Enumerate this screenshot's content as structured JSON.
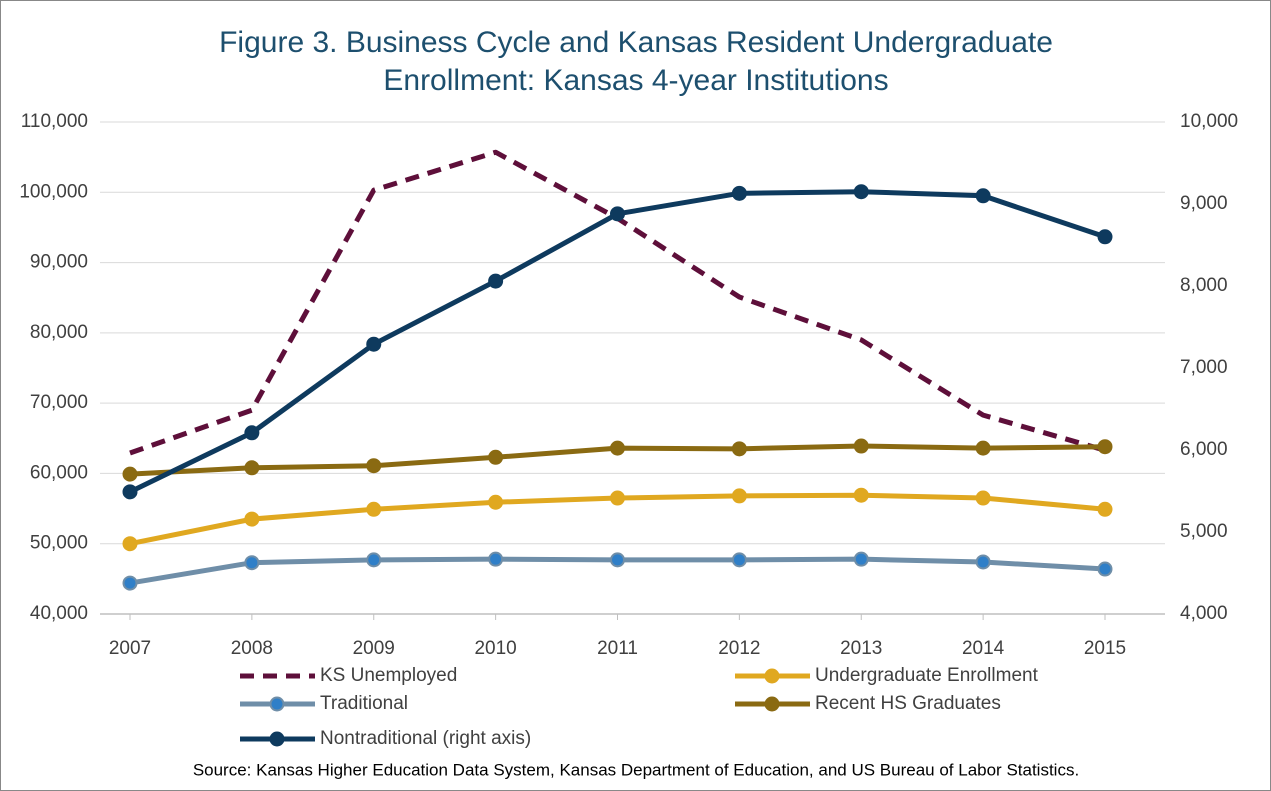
{
  "chart_data": {
    "type": "line",
    "title": [
      "Figure 3.  Business Cycle and Kansas Resident Undergraduate",
      "Enrollment: Kansas 4-year Institutions"
    ],
    "source": "Source: Kansas Higher Education Data System, Kansas Department of Education, and US Bureau of Labor Statistics.",
    "categories": [
      "2007",
      "2008",
      "2009",
      "2010",
      "2011",
      "2012",
      "2013",
      "2014",
      "2015"
    ],
    "series": [
      {
        "name": "KS Unemployed",
        "color": "#5e0f3a",
        "dashed": true,
        "markers": false,
        "values": [
          62900,
          69000,
          100300,
          105700,
          96300,
          85100,
          79000,
          68300,
          63300
        ]
      },
      {
        "name": "Undergraduate Enrollment",
        "color": "#e0a820",
        "markers": true,
        "values": [
          50000,
          53500,
          54900,
          55900,
          56500,
          56800,
          56900,
          56500,
          54900
        ]
      },
      {
        "name": "Traditional",
        "color": "#6f8ea8",
        "marker_color": "#2f7fc8",
        "markers": true,
        "values": [
          44400,
          47300,
          47700,
          47800,
          47700,
          47700,
          47800,
          47400,
          46400
        ]
      },
      {
        "name": "Recent HS Graduates",
        "color": "#8a6a12",
        "markers": true,
        "values": [
          59900,
          60800,
          61100,
          62300,
          63600,
          63500,
          63900,
          63600,
          63800
        ]
      },
      {
        "name": "Nontraditional (right axis)",
        "color": "#0e3a5e",
        "markers": true,
        "axis": "y2",
        "values": [
          5490,
          6210,
          7290,
          8060,
          8880,
          9130,
          9150,
          9100,
          8600
        ]
      }
    ],
    "ylim": [
      40000,
      110000
    ],
    "yticks": [
      {
        "value": 40000,
        "label": "40,000"
      },
      {
        "value": 50000,
        "label": "50,000"
      },
      {
        "value": 60000,
        "label": "60,000"
      },
      {
        "value": 70000,
        "label": "70,000"
      },
      {
        "value": 80000,
        "label": "80,000"
      },
      {
        "value": 90000,
        "label": "90,000"
      },
      {
        "value": 100000,
        "label": "100,000"
      },
      {
        "value": 110000,
        "label": "110,000"
      }
    ],
    "y2lim": [
      4000,
      10000
    ],
    "y2ticks": [
      {
        "value": 4000,
        "label": "4,000"
      },
      {
        "value": 5000,
        "label": "5,000"
      },
      {
        "value": 6000,
        "label": "6,000"
      },
      {
        "value": 7000,
        "label": "7,000"
      },
      {
        "value": 8000,
        "label": "8,000"
      },
      {
        "value": 9000,
        "label": "9,000"
      },
      {
        "value": 10000,
        "label": "10,000"
      }
    ],
    "grid": true
  }
}
